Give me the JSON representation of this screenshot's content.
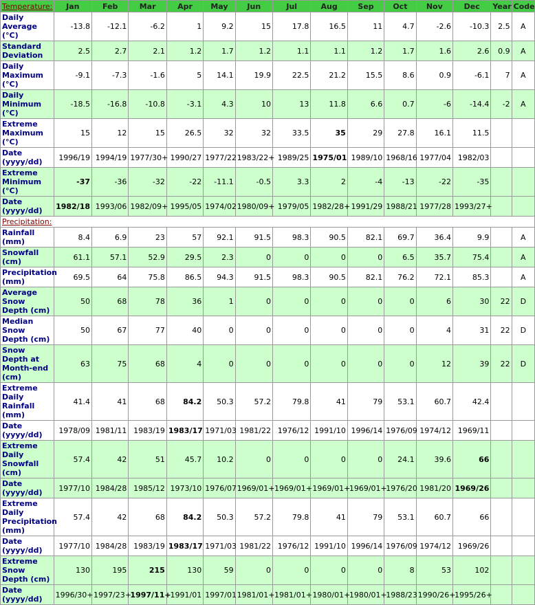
{
  "table": {
    "columns": [
      "Jan",
      "Feb",
      "Mar",
      "Apr",
      "May",
      "Jun",
      "Jul",
      "Aug",
      "Sep",
      "Oct",
      "Nov",
      "Dec",
      "Year",
      "Code"
    ],
    "sections": [
      {
        "title": "Temperature:",
        "rows": [
          {
            "label": "Daily Average (°C)",
            "shaded": false,
            "cells": [
              "-13.8",
              "-12.1",
              "-6.2",
              "1",
              "9.2",
              "15",
              "17.8",
              "16.5",
              "11",
              "4.7",
              "-2.6",
              "-10.3",
              "2.5",
              "A"
            ]
          },
          {
            "label": "Standard Deviation",
            "shaded": true,
            "cells": [
              "2.5",
              "2.7",
              "2.1",
              "1.2",
              "1.7",
              "1.2",
              "1.1",
              "1.1",
              "1.2",
              "1.7",
              "1.6",
              "2.6",
              "0.9",
              "A"
            ]
          },
          {
            "label": "Daily Maximum (°C)",
            "shaded": false,
            "cells": [
              "-9.1",
              "-7.3",
              "-1.6",
              "5",
              "14.1",
              "19.9",
              "22.5",
              "21.2",
              "15.5",
              "8.6",
              "0.9",
              "-6.1",
              "7",
              "A"
            ]
          },
          {
            "label": "Daily Minimum (°C)",
            "shaded": true,
            "cells": [
              "-18.5",
              "-16.8",
              "-10.8",
              "-3.1",
              "4.3",
              "10",
              "13",
              "11.8",
              "6.6",
              "0.7",
              "-6",
              "-14.4",
              "-2",
              "A"
            ]
          },
          {
            "label": "Extreme Maximum (°C)",
            "shaded": false,
            "bold": [
              7
            ],
            "cells": [
              "15",
              "12",
              "15",
              "26.5",
              "32",
              "32",
              "33.5",
              "35",
              "29",
              "27.8",
              "16.1",
              "11.5"
            ]
          },
          {
            "label": "Date (yyyy/dd)",
            "shaded": false,
            "bold": [
              7
            ],
            "cells": [
              "1996/19",
              "1994/19",
              "1977/30+",
              "1990/27",
              "1977/22",
              "1983/22+",
              "1989/25",
              "1975/01",
              "1989/10",
              "1968/16",
              "1977/04",
              "1982/03"
            ]
          },
          {
            "label": "Extreme Minimum (°C)",
            "shaded": true,
            "bold": [
              0
            ],
            "cells": [
              "-37",
              "-36",
              "-32",
              "-22",
              "-11.1",
              "-0.5",
              "3.3",
              "2",
              "-4",
              "-13",
              "-22",
              "-35"
            ]
          },
          {
            "label": "Date (yyyy/dd)",
            "shaded": true,
            "bold": [
              0
            ],
            "cells": [
              "1982/18",
              "1993/06",
              "1982/09+",
              "1995/05",
              "1974/02",
              "1980/09+",
              "1979/05",
              "1982/28+",
              "1991/29",
              "1988/21",
              "1977/28",
              "1993/27+"
            ]
          }
        ]
      },
      {
        "title": "Precipitation:",
        "rows": [
          {
            "label": "Rainfall (mm)",
            "shaded": false,
            "cells": [
              "8.4",
              "6.9",
              "23",
              "57",
              "92.1",
              "91.5",
              "98.3",
              "90.5",
              "82.1",
              "69.7",
              "36.4",
              "9.9",
              null,
              "A"
            ]
          },
          {
            "label": "Snowfall (cm)",
            "shaded": true,
            "cells": [
              "61.1",
              "57.1",
              "52.9",
              "29.5",
              "2.3",
              "0",
              "0",
              "0",
              "0",
              "6.5",
              "35.7",
              "75.4",
              null,
              "A"
            ]
          },
          {
            "label": "Precipitation (mm)",
            "shaded": false,
            "cells": [
              "69.5",
              "64",
              "75.8",
              "86.5",
              "94.3",
              "91.5",
              "98.3",
              "90.5",
              "82.1",
              "76.2",
              "72.1",
              "85.3",
              null,
              "A"
            ]
          },
          {
            "label": "Average Snow Depth (cm)",
            "shaded": true,
            "cells": [
              "50",
              "68",
              "78",
              "36",
              "1",
              "0",
              "0",
              "0",
              "0",
              "0",
              "6",
              "30",
              "22",
              "D"
            ]
          },
          {
            "label": "Median Snow Depth (cm)",
            "shaded": false,
            "cells": [
              "50",
              "67",
              "77",
              "40",
              "0",
              "0",
              "0",
              "0",
              "0",
              "0",
              "4",
              "31",
              "22",
              "D"
            ]
          },
          {
            "label": "Snow Depth at Month-end (cm)",
            "shaded": true,
            "cells": [
              "63",
              "75",
              "68",
              "4",
              "0",
              "0",
              "0",
              "0",
              "0",
              "0",
              "12",
              "39",
              "22",
              "D"
            ]
          },
          {
            "label": "Extreme Daily Rainfall (mm)",
            "shaded": false,
            "bold": [
              3
            ],
            "cells": [
              "41.4",
              "41",
              "68",
              "84.2",
              "50.3",
              "57.2",
              "79.8",
              "41",
              "79",
              "53.1",
              "60.7",
              "42.4"
            ]
          },
          {
            "label": "Date (yyyy/dd)",
            "shaded": false,
            "bold": [
              3
            ],
            "cells": [
              "1978/09",
              "1981/11",
              "1983/19",
              "1983/17",
              "1971/03",
              "1981/22",
              "1976/12",
              "1991/10",
              "1996/14",
              "1976/09",
              "1974/12",
              "1969/11"
            ]
          },
          {
            "label": "Extreme Daily Snowfall (cm)",
            "shaded": true,
            "bold": [
              11
            ],
            "cells": [
              "57.4",
              "42",
              "51",
              "45.7",
              "10.2",
              "0",
              "0",
              "0",
              "0",
              "24.1",
              "39.6",
              "66"
            ]
          },
          {
            "label": "Date (yyyy/dd)",
            "shaded": true,
            "bold": [
              11
            ],
            "cells": [
              "1977/10",
              "1984/28",
              "1985/12",
              "1973/10",
              "1976/07",
              "1969/01+",
              "1969/01+",
              "1969/01+",
              "1969/01+",
              "1976/20",
              "1981/20",
              "1969/26"
            ]
          },
          {
            "label": "Extreme Daily Precipitation (mm)",
            "shaded": false,
            "bold": [
              3
            ],
            "cells": [
              "57.4",
              "42",
              "68",
              "84.2",
              "50.3",
              "57.2",
              "79.8",
              "41",
              "79",
              "53.1",
              "60.7",
              "66"
            ]
          },
          {
            "label": "Date (yyyy/dd)",
            "shaded": false,
            "bold": [
              3
            ],
            "cells": [
              "1977/10",
              "1984/28",
              "1983/19",
              "1983/17",
              "1971/03",
              "1981/22",
              "1976/12",
              "1991/10",
              "1996/14",
              "1976/09",
              "1974/12",
              "1969/26"
            ]
          },
          {
            "label": "Extreme Snow Depth (cm)",
            "shaded": true,
            "bold": [
              2
            ],
            "cells": [
              "130",
              "195",
              "215",
              "130",
              "59",
              "0",
              "0",
              "0",
              "0",
              "8",
              "53",
              "102"
            ]
          },
          {
            "label": "Date (yyyy/dd)",
            "shaded": true,
            "bold": [
              2
            ],
            "cells": [
              "1996/30+",
              "1997/23+",
              "1997/11+",
              "1991/01",
              "1997/01",
              "1981/01+",
              "1981/01+",
              "1980/01+",
              "1980/01+",
              "1988/23",
              "1990/26+",
              "1995/26+"
            ]
          }
        ]
      }
    ]
  }
}
